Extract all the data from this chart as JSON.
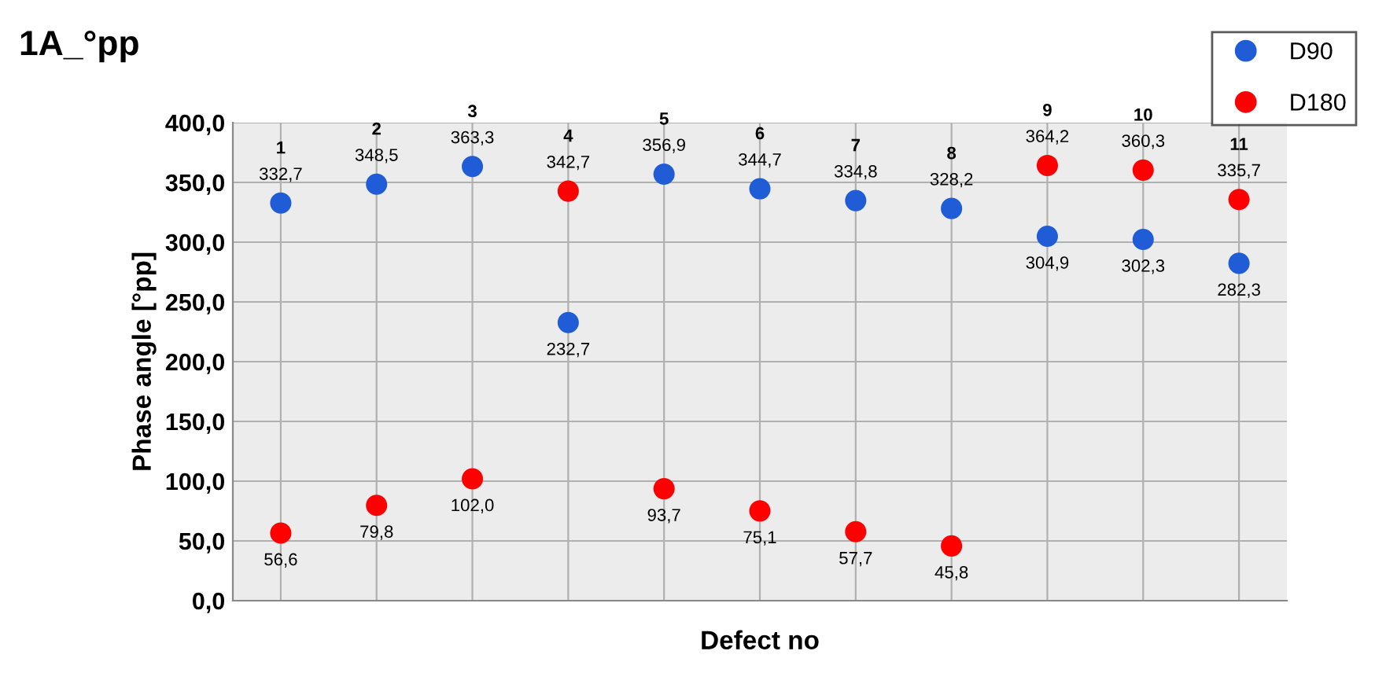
{
  "chart_data": {
    "type": "scatter",
    "title": "1A_°pp",
    "xlabel": "Defect no",
    "ylabel": "Phase angle [°pp]",
    "categories": [
      null,
      null,
      null,
      null,
      null,
      null,
      null,
      null,
      null,
      null,
      null
    ],
    "series": [
      {
        "name": "D90",
        "color": "#1f5cd6",
        "values": [
          332.7,
          348.5,
          363.3,
          232.7,
          356.9,
          344.7,
          334.8,
          328.2,
          304.9,
          302.3,
          282.3
        ],
        "value_labels": [
          "332,7",
          "348,5",
          "363,3",
          "232,7",
          "356,9",
          "344,7",
          "334,8",
          "328,2",
          "304,9",
          "302,3",
          "282,3"
        ]
      },
      {
        "name": "D180",
        "color": "#ff0000",
        "values": [
          56.6,
          79.8,
          102.0,
          342.7,
          93.7,
          75.1,
          57.7,
          45.8,
          364.2,
          360.3,
          335.7
        ],
        "value_labels": [
          "56,6",
          "79,8",
          "102,0",
          "342,7",
          "93,7",
          "75,1",
          "57,7",
          "45,8",
          "364,2",
          "360,3",
          "335,7"
        ]
      }
    ],
    "annotations": [
      "1",
      "2",
      "3",
      "4",
      "5",
      "6",
      "7",
      "8",
      "9",
      "10",
      "11"
    ],
    "ylim": [
      0,
      400
    ],
    "yticks": [
      {
        "value": 0,
        "label": "0,0"
      },
      {
        "value": 50,
        "label": "50,0"
      },
      {
        "value": 100,
        "label": "100,0"
      },
      {
        "value": 150,
        "label": "150,0"
      },
      {
        "value": 200,
        "label": "200,0"
      },
      {
        "value": 250,
        "label": "250,0"
      },
      {
        "value": 300,
        "label": "300,0"
      },
      {
        "value": 350,
        "label": "350,0"
      },
      {
        "value": 400,
        "label": "400,0"
      }
    ],
    "grid": true,
    "legend": "top right",
    "marker": "circle"
  }
}
